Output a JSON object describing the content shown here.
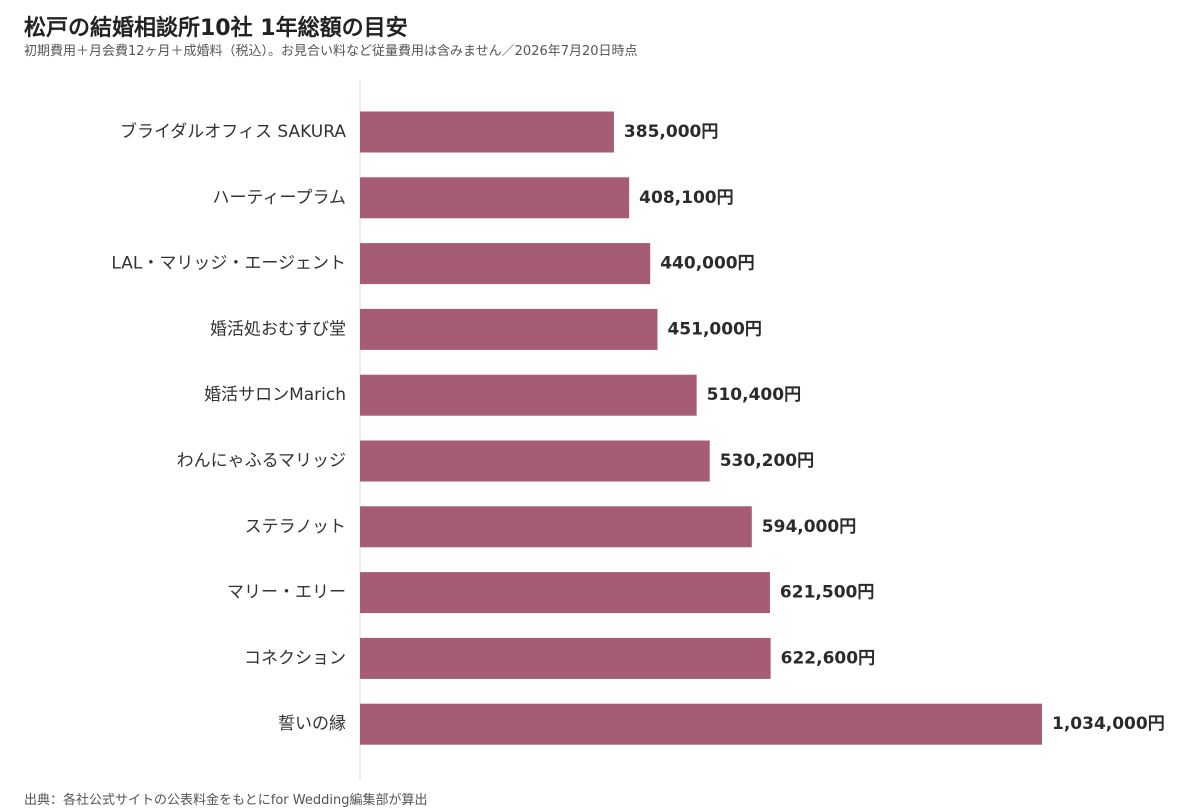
{
  "title": "松戸の結婚相談所10社 1年総額の目安",
  "subtitle": "初期費用＋月会費12ヶ月＋成婚料（税込）。お見合い料など従量費用は含みません／2026年7月20日時点",
  "source": "出典：各社公式サイトの公表料金をもとにfor Wedding編集部が算出",
  "colors": {
    "bar": "#a65c75",
    "axis": "#d9d9d9"
  },
  "chart_data": {
    "type": "bar",
    "orientation": "horizontal",
    "categories": [
      "ブライダルオフィス SAKURA",
      "ハーティープラム",
      "LAL・マリッジ・エージェント",
      "婚活処おむすび堂",
      "婚活サロンMarich",
      "わんにゃふるマリッジ",
      "ステラノット",
      "マリー・エリー",
      "コネクション",
      "誓いの縁"
    ],
    "values": [
      385000,
      408100,
      440000,
      451000,
      510400,
      530200,
      594000,
      621500,
      622600,
      1034000
    ],
    "value_labels": [
      "385,000円",
      "408,100円",
      "440,000円",
      "451,000円",
      "510,400円",
      "530,200円",
      "594,000円",
      "621,500円",
      "622,600円",
      "1,034,000円"
    ],
    "xlim": [
      0,
      1034000
    ],
    "grid": false,
    "title": "松戸の結婚相談所10社 1年総額の目安",
    "xlabel": "",
    "ylabel": ""
  }
}
